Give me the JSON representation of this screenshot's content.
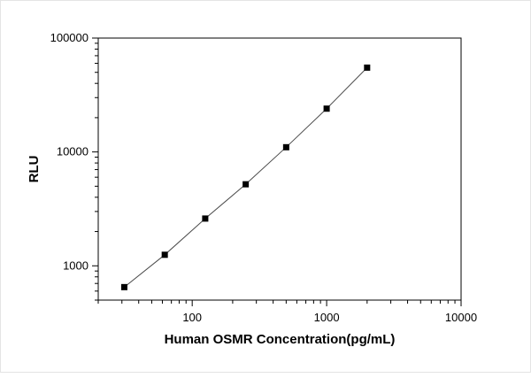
{
  "chart_data": {
    "type": "scatter",
    "title": "",
    "xlabel": "Human OSMR Concentration(pg/mL)",
    "ylabel": "RLU",
    "xscale": "log",
    "yscale": "log",
    "xlim": [
      20,
      10000
    ],
    "ylim": [
      500,
      100000
    ],
    "x": [
      31.25,
      62.5,
      125,
      250,
      500,
      1000,
      2000
    ],
    "y": [
      650,
      1250,
      2600,
      5200,
      11000,
      24000,
      55000
    ],
    "x_major_ticks": [
      100,
      1000,
      10000
    ],
    "y_major_ticks": [
      1000,
      10000,
      100000
    ],
    "marker": "square",
    "marker_color": "#000000",
    "line_color": "#4a4a4a",
    "frame_color": "#000000",
    "grid": false,
    "legend": false
  }
}
